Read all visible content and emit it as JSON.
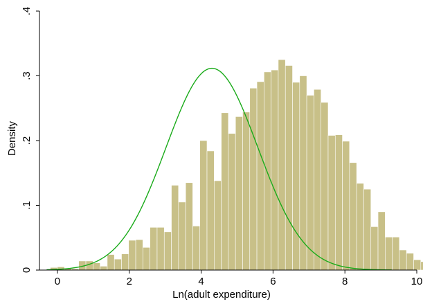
{
  "chart_data": {
    "type": "bar",
    "xlabel": "Ln(adult expenditure)",
    "ylabel": "Density",
    "xlim": [
      -0.5,
      10
    ],
    "ylim": [
      0,
      0.4
    ],
    "x_ticks": [
      0,
      2,
      4,
      6,
      8,
      10
    ],
    "x_tick_labels": [
      "0",
      "2",
      "4",
      "6",
      "8",
      "10"
    ],
    "y_ticks": [
      0,
      0.1,
      0.2,
      0.3,
      0.4
    ],
    "y_tick_labels": [
      "0",
      ".1",
      ".2",
      ".3",
      ".4"
    ],
    "grid": false,
    "bar_color": "#c8c088",
    "curve_color": "#1aab1a",
    "bins": {
      "start": -0.2,
      "width": 0.1983,
      "values": [
        0.004,
        0.005,
        0.003,
        0.002,
        0.014,
        0.014,
        0.011,
        0.006,
        0.024,
        0.017,
        0.025,
        0.046,
        0.047,
        0.035,
        0.066,
        0.066,
        0.059,
        0.131,
        0.105,
        0.135,
        0.068,
        0.2,
        0.184,
        0.138,
        0.243,
        0.211,
        0.237,
        0.244,
        0.281,
        0.291,
        0.306,
        0.309,
        0.325,
        0.316,
        0.29,
        0.3,
        0.27,
        0.279,
        0.259,
        0.208,
        0.209,
        0.199,
        0.166,
        0.134,
        0.125,
        0.067,
        0.09,
        0.051,
        0.051,
        0.031,
        0.026,
        0.016,
        0.013,
        0.012,
        0.001
      ]
    },
    "series": [
      {
        "type": "line",
        "distribution": "normal",
        "mean": 4.3,
        "sd": 1.28
      }
    ]
  }
}
